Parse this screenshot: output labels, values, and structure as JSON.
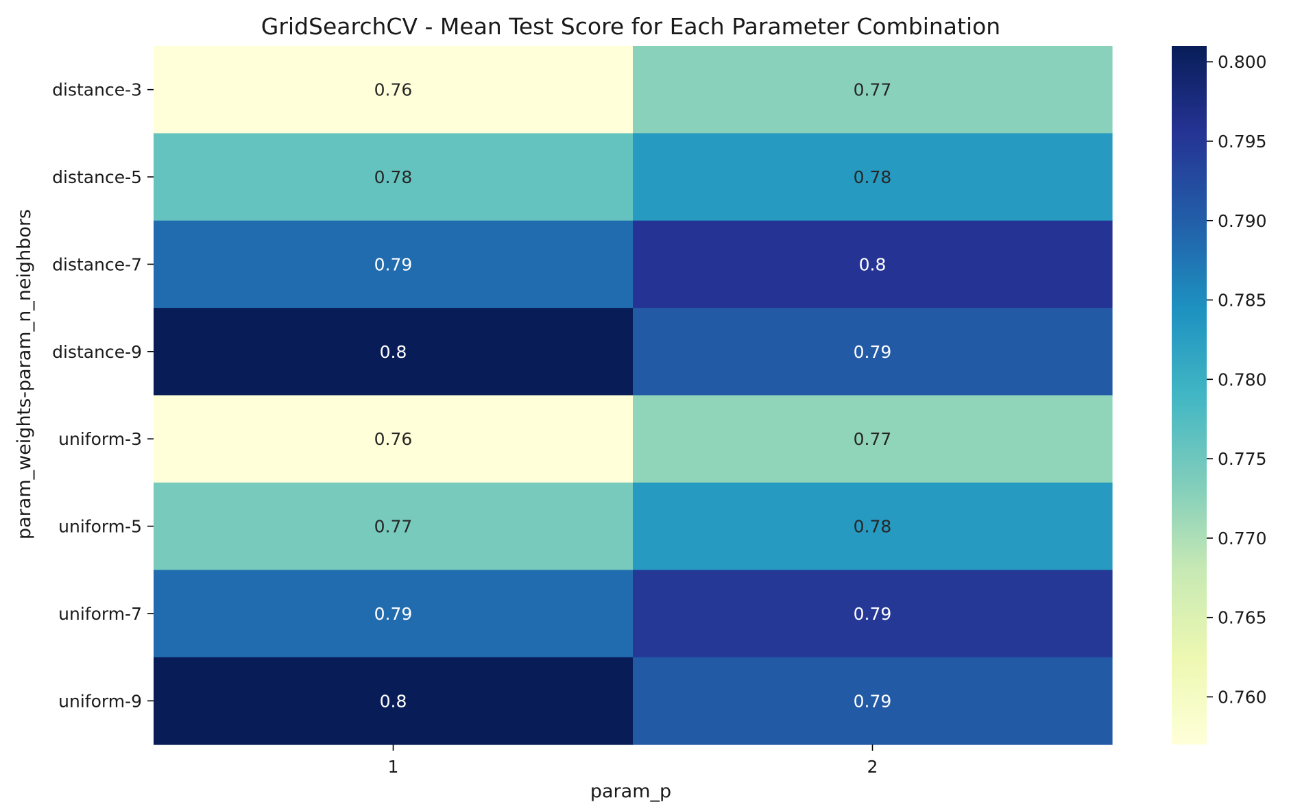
{
  "chart_data": {
    "type": "heatmap",
    "title": "GridSearchCV - Mean Test Score for Each Parameter Combination",
    "xlabel": "param_p",
    "ylabel": "param_weights-param_n_neighbors",
    "x_categories": [
      "1",
      "2"
    ],
    "y_categories": [
      "distance-3",
      "distance-5",
      "distance-7",
      "distance-9",
      "uniform-3",
      "uniform-5",
      "uniform-7",
      "uniform-9"
    ],
    "values": [
      [
        0.757,
        0.7727
      ],
      [
        0.7758,
        0.7832
      ],
      [
        0.7885,
        0.7955
      ],
      [
        0.801,
        0.7905
      ],
      [
        0.757,
        0.7722
      ],
      [
        0.7742,
        0.7832
      ],
      [
        0.7885,
        0.795
      ],
      [
        0.801,
        0.7905
      ]
    ],
    "annotations": [
      [
        "0.76",
        "0.77"
      ],
      [
        "0.78",
        "0.78"
      ],
      [
        "0.79",
        "0.8"
      ],
      [
        "0.8",
        "0.79"
      ],
      [
        "0.76",
        "0.77"
      ],
      [
        "0.77",
        "0.78"
      ],
      [
        "0.79",
        "0.79"
      ],
      [
        "0.8",
        "0.79"
      ]
    ],
    "colormap": "YlGnBu",
    "vmin": 0.757,
    "vmax": 0.801,
    "colorbar_ticks": [
      "0.760",
      "0.765",
      "0.770",
      "0.775",
      "0.780",
      "0.785",
      "0.790",
      "0.795",
      "0.800"
    ],
    "grid": false
  }
}
